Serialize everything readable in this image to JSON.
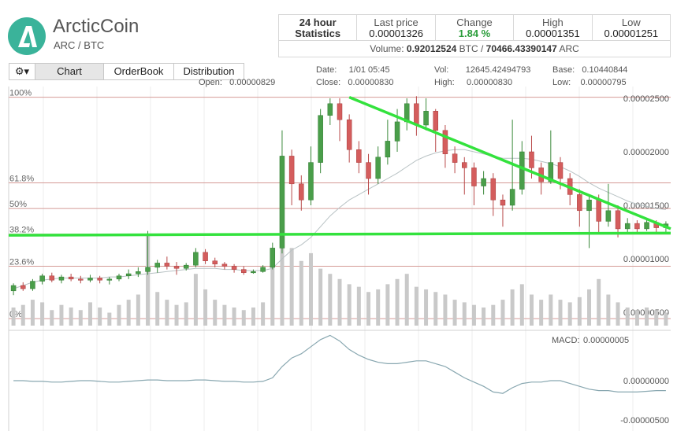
{
  "header": {
    "name": "ArcticCoin",
    "pair": "ARC / BTC",
    "logo_letter": "A",
    "logo_color": "#3ab39a"
  },
  "stats": {
    "title_line1": "24 hour",
    "title_line2": "Statistics",
    "last_price_label": "Last price",
    "last_price": "0.00001326",
    "change_label": "Change",
    "change": "1.84 %",
    "high_label": "High",
    "high": "0.00001351",
    "low_label": "Low",
    "low": "0.00001251",
    "volume_label": "Volume:",
    "volume_btc": "0.92012524",
    "btc_unit": "BTC /",
    "volume_arc": "70466.43390147",
    "arc_unit": "ARC"
  },
  "toolbar": {
    "gear": "⚙▾",
    "tabs": [
      "Chart",
      "OrderBook",
      "Distribution"
    ],
    "active_tab": "Chart"
  },
  "info": {
    "open_label": "Open:",
    "open": "0.00000829",
    "date_label": "Date:",
    "date": "1/01 05:45",
    "close_label": "Close:",
    "close": "0.00000830",
    "vol_label": "Vol:",
    "vol": "12645.42494793",
    "high_label": "High:",
    "high": "0.00000830",
    "base_label": "Base:",
    "base": "0.10440844",
    "low_label": "Low:",
    "low": "0.00000795"
  },
  "chart_data": [
    {
      "type": "candlestick",
      "y_ticks": [
        "0.00002500",
        "0.00002000",
        "0.00001500",
        "0.00001000",
        "0.00000500"
      ],
      "ylim": [
        4e-06,
        2.55e-05
      ],
      "fib_levels": [
        {
          "label": "100%",
          "value": 2.51e-05
        },
        {
          "label": "61.8%",
          "value": 1.71e-05
        },
        {
          "label": "50%",
          "value": 1.47e-05
        },
        {
          "label": "38.2%",
          "value": 1.23e-05
        },
        {
          "label": "23.6%",
          "value": 9.3e-06
        },
        {
          "label": "0%",
          "value": 4.4e-06
        }
      ],
      "candles": [
        [
          7.0,
          7.5,
          6.6,
          7.7
        ],
        [
          7.5,
          7.2,
          7.0,
          7.8
        ],
        [
          7.2,
          7.9,
          7.0,
          8.1
        ],
        [
          7.9,
          8.4,
          7.6,
          8.6
        ],
        [
          8.4,
          8.0,
          7.8,
          8.7
        ],
        [
          8.0,
          8.3,
          7.7,
          8.5
        ],
        [
          8.3,
          8.1,
          7.9,
          8.6
        ],
        [
          8.1,
          8.0,
          7.7,
          8.4
        ],
        [
          8.0,
          8.2,
          7.8,
          8.5
        ],
        [
          8.2,
          8.0,
          7.7,
          8.4
        ],
        [
          8.0,
          8.1,
          7.6,
          8.3
        ],
        [
          8.1,
          8.4,
          7.9,
          8.6
        ],
        [
          8.4,
          8.6,
          8.1,
          9.0
        ],
        [
          8.6,
          8.8,
          8.3,
          9.2
        ],
        [
          8.8,
          9.2,
          8.5,
          12.6
        ],
        [
          9.2,
          9.6,
          8.7,
          9.9
        ],
        [
          9.6,
          9.3,
          9.0,
          10.2
        ],
        [
          9.3,
          9.1,
          8.5,
          9.7
        ],
        [
          9.1,
          9.4,
          8.9,
          9.6
        ],
        [
          9.4,
          10.6,
          9.2,
          11.0
        ],
        [
          10.6,
          9.8,
          9.5,
          10.9
        ],
        [
          9.8,
          9.5,
          9.2,
          10.1
        ],
        [
          9.5,
          9.3,
          9.0,
          9.7
        ],
        [
          9.3,
          9.0,
          8.7,
          9.5
        ],
        [
          9.0,
          8.7,
          8.5,
          9.3
        ],
        [
          8.7,
          8.8,
          8.6,
          9.0
        ],
        [
          8.8,
          9.2,
          8.7,
          9.4
        ],
        [
          9.2,
          11.0,
          9.0,
          11.5
        ],
        [
          11.0,
          19.6,
          10.5,
          22.0
        ],
        [
          19.6,
          17.0,
          15.0,
          20.2
        ],
        [
          17.0,
          15.5,
          14.5,
          17.8
        ],
        [
          15.5,
          19.0,
          15.0,
          20.5
        ],
        [
          19.0,
          23.4,
          18.0,
          24.0
        ],
        [
          23.4,
          24.5,
          22.5,
          25.0
        ],
        [
          24.5,
          23.0,
          21.0,
          25.0
        ],
        [
          23.0,
          20.2,
          19.0,
          23.5
        ],
        [
          20.2,
          19.0,
          18.0,
          21.0
        ],
        [
          19.0,
          17.5,
          16.0,
          19.8
        ],
        [
          17.5,
          19.5,
          17.0,
          20.5
        ],
        [
          19.5,
          21.0,
          18.8,
          23.0
        ],
        [
          21.0,
          22.8,
          20.0,
          24.0
        ],
        [
          22.8,
          24.5,
          22.0,
          25.0
        ],
        [
          24.5,
          22.5,
          21.5,
          25.2
        ],
        [
          22.5,
          23.8,
          22.0,
          25.0
        ],
        [
          23.8,
          22.0,
          20.0,
          24.0
        ],
        [
          22.0,
          19.8,
          18.5,
          22.5
        ],
        [
          19.8,
          19.0,
          18.0,
          20.5
        ],
        [
          19.0,
          18.5,
          16.0,
          19.5
        ],
        [
          18.5,
          16.8,
          15.0,
          19.0
        ],
        [
          16.8,
          17.5,
          16.0,
          18.2
        ],
        [
          17.5,
          15.5,
          14.0,
          18.0
        ],
        [
          15.5,
          15.0,
          13.0,
          16.0
        ],
        [
          15.0,
          16.5,
          14.5,
          23.0
        ],
        [
          16.5,
          20.0,
          16.0,
          21.0
        ],
        [
          20.0,
          18.5,
          17.5,
          21.5
        ],
        [
          18.5,
          17.2,
          16.0,
          19.0
        ],
        [
          17.2,
          19.0,
          17.0,
          22.0
        ],
        [
          19.0,
          17.5,
          16.5,
          19.5
        ],
        [
          17.5,
          16.0,
          15.0,
          18.0
        ],
        [
          16.0,
          14.5,
          13.0,
          16.5
        ],
        [
          14.5,
          15.5,
          11.0,
          16.0
        ],
        [
          15.5,
          13.5,
          12.5,
          16.0
        ],
        [
          13.5,
          14.5,
          13.0,
          17.0
        ],
        [
          14.5,
          12.8,
          12.0,
          15.0
        ],
        [
          12.8,
          13.3,
          12.5,
          13.8
        ],
        [
          13.3,
          12.8,
          12.5,
          13.6
        ],
        [
          12.8,
          13.4,
          12.6,
          13.8
        ],
        [
          13.4,
          12.9,
          12.5,
          13.6
        ],
        [
          12.9,
          13.26,
          12.5,
          13.5
        ]
      ],
      "ma": [
        7.2,
        7.5,
        7.8,
        8.0,
        8.1,
        8.2,
        8.2,
        8.2,
        8.2,
        8.2,
        8.3,
        8.3,
        8.4,
        8.5,
        8.6,
        8.7,
        8.8,
        8.9,
        9.0,
        9.1,
        9.1,
        9.1,
        9.0,
        9.0,
        8.9,
        8.9,
        8.9,
        9.1,
        10.0,
        10.8,
        11.3,
        12.0,
        13.0,
        14.0,
        14.8,
        15.5,
        16.0,
        16.5,
        17.0,
        17.5,
        18.0,
        18.6,
        19.2,
        19.6,
        19.9,
        20.1,
        20.2,
        20.2,
        20.0,
        19.8,
        19.6,
        19.4,
        19.4,
        19.4,
        19.3,
        19.1,
        18.9,
        18.6,
        18.2,
        17.7,
        17.1,
        16.6,
        16.2,
        15.8,
        15.4,
        15.1,
        14.9,
        14.7,
        14.6
      ],
      "volume_bars": [
        0.7,
        0.8,
        1.0,
        0.9,
        0.6,
        0.8,
        0.7,
        0.6,
        0.9,
        0.7,
        0.5,
        0.8,
        1.0,
        1.2,
        3.5,
        1.3,
        1.0,
        0.8,
        0.9,
        2.0,
        1.4,
        1.0,
        0.8,
        0.7,
        0.6,
        0.7,
        0.9,
        2.4,
        3.8,
        3.0,
        2.5,
        2.8,
        2.2,
        2.0,
        1.8,
        1.6,
        1.5,
        1.3,
        1.4,
        1.6,
        1.8,
        2.0,
        1.5,
        1.4,
        1.3,
        1.2,
        1.0,
        0.9,
        0.8,
        0.7,
        0.8,
        1.0,
        1.4,
        1.6,
        1.2,
        1.0,
        1.2,
        1.0,
        0.9,
        1.1,
        1.4,
        1.8,
        1.2,
        0.9,
        0.7,
        0.6,
        0.7,
        0.6,
        0.5
      ],
      "trendlines": [
        {
          "name": "support",
          "from": [
            0,
            1.22e-05
          ],
          "to": [
            69,
            1.24e-05
          ]
        },
        {
          "name": "resistance",
          "from": [
            35,
            2.51e-05
          ],
          "to": [
            69,
            1.28e-05
          ]
        }
      ]
    },
    {
      "type": "line",
      "label": "MACD:",
      "macd_value": "0.00000005",
      "y_ticks": [
        "0.00000000",
        "-0.00000500"
      ],
      "values": [
        0.0,
        0.0,
        -0.05,
        -0.05,
        -0.1,
        -0.1,
        -0.05,
        0.0,
        0.0,
        -0.05,
        -0.1,
        -0.1,
        -0.05,
        0.0,
        0.05,
        0.05,
        0.0,
        0.0,
        0.0,
        0.05,
        0.05,
        0.0,
        -0.05,
        -0.05,
        -0.1,
        -0.1,
        -0.05,
        0.2,
        1.0,
        1.6,
        1.9,
        2.4,
        2.9,
        3.2,
        2.8,
        2.2,
        1.8,
        1.5,
        1.3,
        1.2,
        1.2,
        1.3,
        1.4,
        1.4,
        1.2,
        1.0,
        0.6,
        0.2,
        -0.1,
        -0.4,
        -0.8,
        -0.9,
        -0.5,
        -0.2,
        -0.1,
        -0.1,
        0.0,
        0.0,
        -0.2,
        -0.4,
        -0.6,
        -0.7,
        -0.7,
        -0.8,
        -0.8,
        -0.8,
        -0.75,
        -0.7,
        -0.7
      ]
    }
  ]
}
